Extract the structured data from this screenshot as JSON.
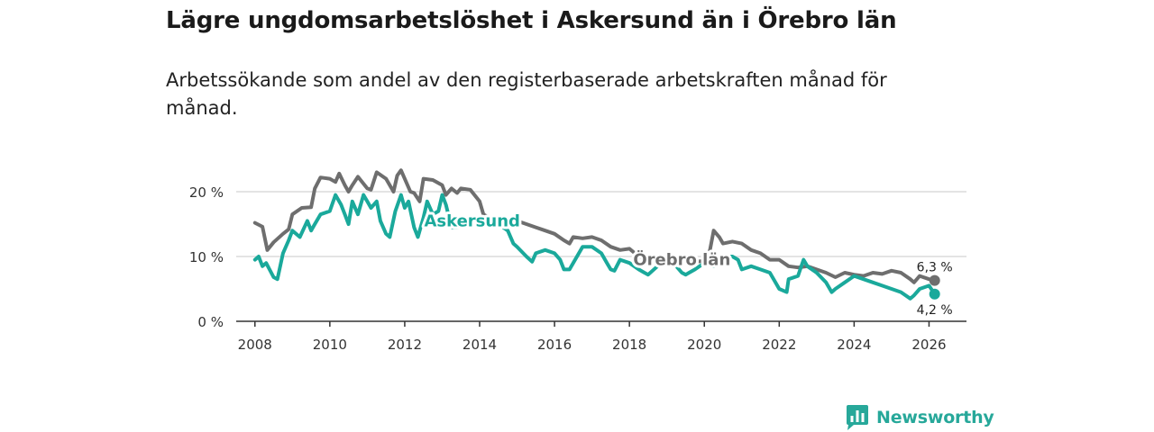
{
  "header": {
    "title": "Lägre ungdomsarbetslöshet i Askersund än i Örebro län",
    "subtitle": "Arbetssökande som andel av den registerbaserade arbetskraften månad för månad."
  },
  "brand": {
    "name": "Newsworthy",
    "icon": "bar-chart-logo-icon",
    "color": "#27a89a"
  },
  "chart_data": {
    "type": "line",
    "title": "Lägre ungdomsarbetslöshet i Askersund än i Örebro län",
    "subtitle": "Arbetssökande som andel av den registerbaserade arbetskraften månad för månad.",
    "xlabel": "",
    "ylabel": "",
    "xlim": [
      2007.5,
      2027.0
    ],
    "ylim": [
      0,
      25
    ],
    "y_ticks": [
      0,
      10,
      20
    ],
    "y_tick_labels": [
      "0 %",
      "10 %",
      "20 %"
    ],
    "x_ticks": [
      2008,
      2010,
      2012,
      2014,
      2016,
      2018,
      2020,
      2022,
      2024,
      2026
    ],
    "x_tick_labels": [
      "2008",
      "2010",
      "2012",
      "2014",
      "2016",
      "2018",
      "2020",
      "2022",
      "2024",
      "2026"
    ],
    "grid": true,
    "series": [
      {
        "name": "Örebro län",
        "color": "#6e6e6e",
        "end_label": "6,3 %",
        "label_at": 2019.4,
        "points": [
          [
            2008.0,
            15.2
          ],
          [
            2008.2,
            14.6
          ],
          [
            2008.33,
            11.0
          ],
          [
            2008.5,
            12.2
          ],
          [
            2008.75,
            13.5
          ],
          [
            2008.9,
            14.2
          ],
          [
            2009.0,
            16.5
          ],
          [
            2009.25,
            17.5
          ],
          [
            2009.5,
            17.6
          ],
          [
            2009.6,
            20.5
          ],
          [
            2009.75,
            22.2
          ],
          [
            2010.0,
            22.0
          ],
          [
            2010.15,
            21.5
          ],
          [
            2010.25,
            22.8
          ],
          [
            2010.4,
            21.0
          ],
          [
            2010.5,
            20.0
          ],
          [
            2010.6,
            21.0
          ],
          [
            2010.75,
            22.3
          ],
          [
            2011.0,
            20.5
          ],
          [
            2011.1,
            20.3
          ],
          [
            2011.25,
            23.0
          ],
          [
            2011.5,
            22.0
          ],
          [
            2011.7,
            20.0
          ],
          [
            2011.8,
            22.5
          ],
          [
            2011.9,
            23.3
          ],
          [
            2012.0,
            22.0
          ],
          [
            2012.15,
            20.0
          ],
          [
            2012.25,
            19.8
          ],
          [
            2012.4,
            18.5
          ],
          [
            2012.5,
            22.0
          ],
          [
            2012.75,
            21.8
          ],
          [
            2013.0,
            21.0
          ],
          [
            2013.1,
            19.5
          ],
          [
            2013.25,
            20.5
          ],
          [
            2013.4,
            19.8
          ],
          [
            2013.5,
            20.5
          ],
          [
            2013.75,
            20.3
          ],
          [
            2014.0,
            18.5
          ],
          [
            2014.1,
            16.5
          ],
          [
            2014.25,
            16.0
          ],
          [
            2014.5,
            15.5
          ],
          [
            2014.75,
            15.8
          ],
          [
            2015.0,
            15.5
          ],
          [
            2015.25,
            15.0
          ],
          [
            2015.5,
            14.5
          ],
          [
            2015.75,
            14.0
          ],
          [
            2016.0,
            13.5
          ],
          [
            2016.25,
            12.5
          ],
          [
            2016.4,
            12.0
          ],
          [
            2016.5,
            13.0
          ],
          [
            2016.75,
            12.8
          ],
          [
            2017.0,
            13.0
          ],
          [
            2017.25,
            12.5
          ],
          [
            2017.5,
            11.5
          ],
          [
            2017.75,
            11.0
          ],
          [
            2018.0,
            11.2
          ],
          [
            2018.25,
            10.0
          ],
          [
            2018.5,
            9.5
          ],
          [
            2018.75,
            9.0
          ],
          [
            2019.0,
            9.5
          ],
          [
            2019.5,
            9.5
          ],
          [
            2019.75,
            9.2
          ],
          [
            2020.0,
            9.3
          ],
          [
            2020.15,
            11.0
          ],
          [
            2020.25,
            14.0
          ],
          [
            2020.4,
            13.0
          ],
          [
            2020.5,
            12.0
          ],
          [
            2020.75,
            12.3
          ],
          [
            2021.0,
            12.0
          ],
          [
            2021.25,
            11.0
          ],
          [
            2021.5,
            10.5
          ],
          [
            2021.75,
            9.5
          ],
          [
            2022.0,
            9.5
          ],
          [
            2022.25,
            8.5
          ],
          [
            2022.5,
            8.3
          ],
          [
            2022.75,
            8.5
          ],
          [
            2023.0,
            8.0
          ],
          [
            2023.25,
            7.5
          ],
          [
            2023.5,
            6.8
          ],
          [
            2023.75,
            7.5
          ],
          [
            2024.0,
            7.2
          ],
          [
            2024.25,
            7.0
          ],
          [
            2024.5,
            7.5
          ],
          [
            2024.75,
            7.3
          ],
          [
            2025.0,
            7.8
          ],
          [
            2025.25,
            7.5
          ],
          [
            2025.5,
            6.5
          ],
          [
            2025.6,
            6.0
          ],
          [
            2025.75,
            7.0
          ],
          [
            2026.0,
            6.5
          ],
          [
            2026.15,
            6.3
          ]
        ]
      },
      {
        "name": "Askersund",
        "color": "#1aa99b",
        "end_label": "4,2 %",
        "label_at": 2013.8,
        "points": [
          [
            2008.0,
            9.5
          ],
          [
            2008.1,
            10.0
          ],
          [
            2008.2,
            8.5
          ],
          [
            2008.3,
            9.0
          ],
          [
            2008.5,
            6.8
          ],
          [
            2008.6,
            6.5
          ],
          [
            2008.75,
            10.5
          ],
          [
            2008.9,
            12.5
          ],
          [
            2009.0,
            14.0
          ],
          [
            2009.2,
            13.0
          ],
          [
            2009.4,
            15.5
          ],
          [
            2009.5,
            14.0
          ],
          [
            2009.6,
            15.0
          ],
          [
            2009.75,
            16.5
          ],
          [
            2010.0,
            17.0
          ],
          [
            2010.15,
            19.5
          ],
          [
            2010.3,
            18.0
          ],
          [
            2010.4,
            16.5
          ],
          [
            2010.5,
            15.0
          ],
          [
            2010.6,
            18.5
          ],
          [
            2010.75,
            16.5
          ],
          [
            2010.9,
            19.5
          ],
          [
            2011.0,
            18.5
          ],
          [
            2011.1,
            17.5
          ],
          [
            2011.25,
            18.5
          ],
          [
            2011.35,
            15.5
          ],
          [
            2011.5,
            13.5
          ],
          [
            2011.6,
            13.0
          ],
          [
            2011.75,
            17.0
          ],
          [
            2011.9,
            19.5
          ],
          [
            2012.0,
            17.5
          ],
          [
            2012.1,
            18.5
          ],
          [
            2012.25,
            14.5
          ],
          [
            2012.35,
            13.0
          ],
          [
            2012.5,
            16.0
          ],
          [
            2012.6,
            18.5
          ],
          [
            2012.75,
            16.5
          ],
          [
            2012.9,
            17.0
          ],
          [
            2013.0,
            19.5
          ],
          [
            2013.1,
            18.0
          ],
          [
            2013.25,
            14.5
          ],
          [
            2013.4,
            14.5
          ],
          [
            2013.5,
            15.0
          ],
          [
            2013.75,
            15.5
          ],
          [
            2014.0,
            15.5
          ],
          [
            2014.25,
            15.0
          ],
          [
            2014.5,
            15.0
          ],
          [
            2014.75,
            14.0
          ],
          [
            2014.9,
            12.0
          ],
          [
            2015.0,
            11.5
          ],
          [
            2015.25,
            10.0
          ],
          [
            2015.4,
            9.2
          ],
          [
            2015.5,
            10.5
          ],
          [
            2015.75,
            11.0
          ],
          [
            2016.0,
            10.5
          ],
          [
            2016.15,
            9.5
          ],
          [
            2016.25,
            8.0
          ],
          [
            2016.4,
            8.0
          ],
          [
            2016.5,
            9.0
          ],
          [
            2016.75,
            11.5
          ],
          [
            2017.0,
            11.5
          ],
          [
            2017.25,
            10.5
          ],
          [
            2017.4,
            9.0
          ],
          [
            2017.5,
            8.0
          ],
          [
            2017.6,
            7.8
          ],
          [
            2017.75,
            9.5
          ],
          [
            2018.0,
            9.0
          ],
          [
            2018.25,
            8.0
          ],
          [
            2018.4,
            7.5
          ],
          [
            2018.5,
            7.2
          ],
          [
            2018.75,
            8.5
          ],
          [
            2019.0,
            9.0
          ],
          [
            2019.25,
            8.5
          ],
          [
            2019.4,
            7.5
          ],
          [
            2019.5,
            7.2
          ],
          [
            2019.75,
            8.0
          ],
          [
            2020.0,
            9.0
          ],
          [
            2020.25,
            8.5
          ],
          [
            2020.5,
            9.0
          ],
          [
            2020.6,
            10.0
          ],
          [
            2020.75,
            10.0
          ],
          [
            2020.9,
            9.5
          ],
          [
            2021.0,
            8.0
          ],
          [
            2021.25,
            8.5
          ],
          [
            2021.5,
            8.0
          ],
          [
            2021.75,
            7.5
          ],
          [
            2021.85,
            6.5
          ],
          [
            2022.0,
            5.0
          ],
          [
            2022.2,
            4.5
          ],
          [
            2022.25,
            6.5
          ],
          [
            2022.5,
            7.0
          ],
          [
            2022.65,
            9.5
          ],
          [
            2022.75,
            8.5
          ],
          [
            2023.0,
            7.5
          ],
          [
            2023.25,
            6.0
          ],
          [
            2023.4,
            4.5
          ],
          [
            2023.5,
            5.0
          ],
          [
            2023.75,
            6.0
          ],
          [
            2024.0,
            7.0
          ],
          [
            2024.25,
            6.5
          ],
          [
            2024.5,
            6.0
          ],
          [
            2024.75,
            5.5
          ],
          [
            2025.0,
            5.0
          ],
          [
            2025.25,
            4.5
          ],
          [
            2025.5,
            3.5
          ],
          [
            2025.6,
            4.0
          ],
          [
            2025.75,
            5.0
          ],
          [
            2026.0,
            5.5
          ],
          [
            2026.15,
            4.2
          ]
        ]
      }
    ]
  }
}
